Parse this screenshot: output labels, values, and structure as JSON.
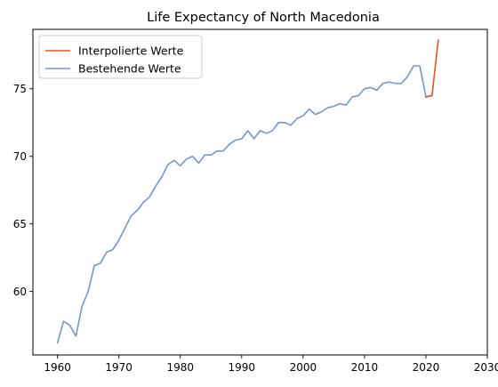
{
  "chart_data": {
    "type": "line",
    "title": "Life Expectancy of North Macedonia",
    "xlabel": "",
    "ylabel": "",
    "xlim": [
      1956,
      2030
    ],
    "ylim": [
      55.3,
      79.4
    ],
    "xticks": [
      1960,
      1970,
      1980,
      1990,
      2000,
      2010,
      2020,
      2030
    ],
    "yticks": [
      60,
      65,
      70,
      75
    ],
    "grid": false,
    "legend_position": "top-left",
    "series": [
      {
        "name": "Interpolierte Werte",
        "color": "#e8531f",
        "x": [
          2020,
          2021,
          2022
        ],
        "y": [
          74.4,
          74.5,
          78.6
        ]
      },
      {
        "name": "Bestehende Werte",
        "color": "#6f96d8",
        "x": [
          1960,
          1961,
          1962,
          1963,
          1964,
          1965,
          1966,
          1967,
          1968,
          1969,
          1970,
          1971,
          1972,
          1973,
          1974,
          1975,
          1976,
          1977,
          1978,
          1979,
          1980,
          1981,
          1982,
          1983,
          1984,
          1985,
          1986,
          1987,
          1988,
          1989,
          1990,
          1991,
          1992,
          1993,
          1994,
          1995,
          1996,
          1997,
          1998,
          1999,
          2000,
          2001,
          2002,
          2003,
          2004,
          2005,
          2006,
          2007,
          2008,
          2009,
          2010,
          2011,
          2012,
          2013,
          2014,
          2015,
          2016,
          2017,
          2018,
          2019,
          2020,
          2021
        ],
        "y": [
          56.2,
          57.8,
          57.5,
          56.7,
          58.9,
          60.0,
          61.9,
          62.1,
          62.9,
          63.1,
          63.8,
          64.7,
          65.6,
          66.0,
          66.6,
          67.0,
          67.8,
          68.5,
          69.4,
          69.7,
          69.3,
          69.8,
          70.0,
          69.5,
          70.1,
          70.1,
          70.4,
          70.4,
          70.9,
          71.2,
          71.3,
          71.9,
          71.3,
          71.9,
          71.7,
          71.9,
          72.5,
          72.5,
          72.3,
          72.8,
          73.0,
          73.5,
          73.1,
          73.3,
          73.6,
          73.7,
          73.9,
          73.8,
          74.4,
          74.5,
          75.0,
          75.1,
          74.9,
          75.4,
          75.5,
          75.4,
          75.4,
          75.9,
          76.7,
          76.7,
          74.4,
          74.5
        ]
      }
    ]
  }
}
